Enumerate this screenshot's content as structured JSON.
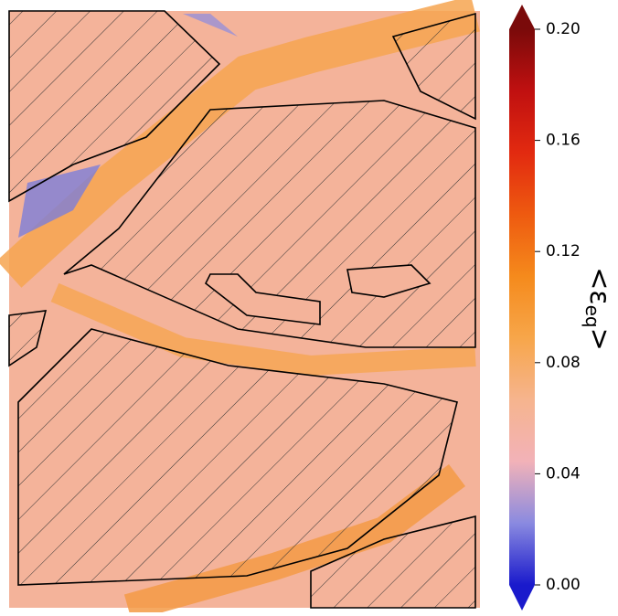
{
  "chart_data": {
    "type": "heatmap",
    "colorbar": {
      "label": {
        "text": "<ε",
        "subscript": "eq",
        "suffix": ">"
      },
      "clim": [
        0,
        0.2
      ],
      "ticks": [
        {
          "value": 0,
          "label": "0.00"
        },
        0.04,
        0.08,
        0.12,
        0.16,
        {
          "value": 0.2,
          "label": "0.20"
        }
      ],
      "colormap": [
        "#1a1acc",
        "#8a8ae0",
        "#f2b2b8",
        "#f6b48e",
        "#f7a64a",
        "#f58a1c",
        "#ee5a10",
        "#e22a10",
        "#c01010",
        "#7a0a0a"
      ],
      "extend": "both"
    }
  }
}
